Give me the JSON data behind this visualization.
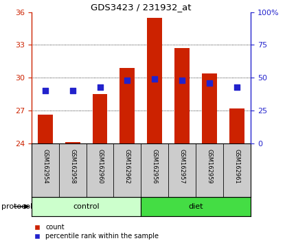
{
  "title": "GDS3423 / 231932_at",
  "samples": [
    "GSM162954",
    "GSM162958",
    "GSM162960",
    "GSM162962",
    "GSM162956",
    "GSM162957",
    "GSM162959",
    "GSM162961"
  ],
  "bar_values": [
    26.6,
    24.1,
    28.5,
    30.9,
    35.5,
    32.7,
    30.4,
    27.2
  ],
  "bar_base": 24.0,
  "dot_pct": [
    40,
    40,
    43,
    48,
    49,
    48,
    46,
    43
  ],
  "ylim_left": [
    24,
    36
  ],
  "ylim_right": [
    0,
    100
  ],
  "yticks_left": [
    24,
    27,
    30,
    33,
    36
  ],
  "yticks_right": [
    0,
    25,
    50,
    75,
    100
  ],
  "bar_color": "#cc2200",
  "dot_color": "#2222cc",
  "control_color": "#ccffcc",
  "diet_color": "#44dd44",
  "label_area_bg": "#cccccc",
  "left_tick_color": "#cc2200",
  "right_tick_color": "#2222cc",
  "bar_width": 0.55,
  "dot_size": 35,
  "protocol_label": "protocol",
  "legend_count": "count",
  "legend_percentile": "percentile rank within the sample",
  "control_label": "control",
  "diet_label": "diet"
}
